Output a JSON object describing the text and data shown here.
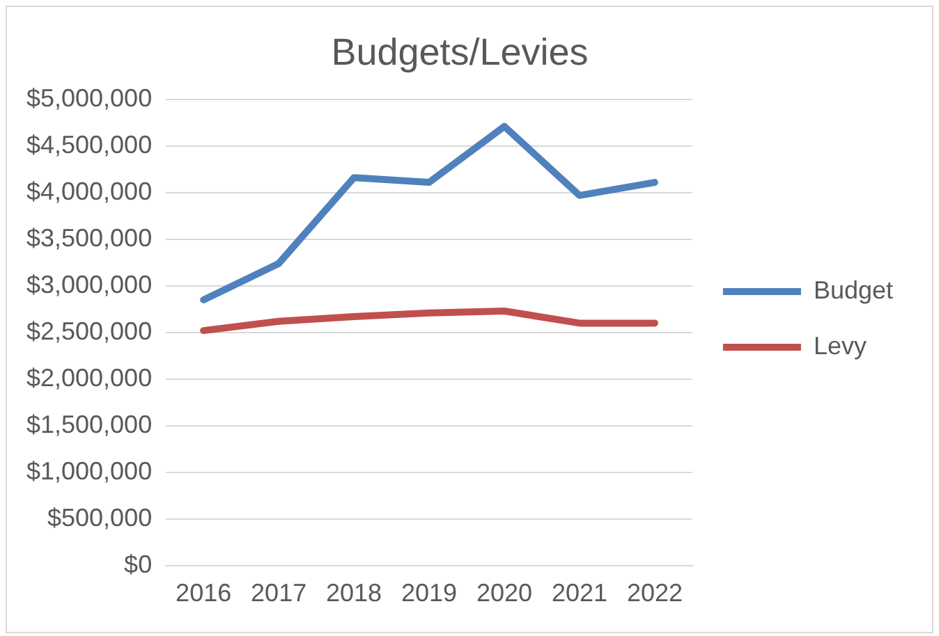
{
  "chart_data": {
    "type": "line",
    "title": "Budgets/Levies",
    "categories": [
      "2016",
      "2017",
      "2018",
      "2019",
      "2020",
      "2021",
      "2022"
    ],
    "series": [
      {
        "name": "Budget",
        "color": "#4f81bd",
        "values": [
          2850000,
          3240000,
          4160000,
          4110000,
          4710000,
          3970000,
          4110000
        ]
      },
      {
        "name": "Levy",
        "color": "#c0504d",
        "values": [
          2520000,
          2620000,
          2670000,
          2710000,
          2730000,
          2600000,
          2600000
        ]
      }
    ],
    "ylim": [
      0,
      5000000
    ],
    "yticks": [
      {
        "value": 0,
        "label": "$0"
      },
      {
        "value": 500000,
        "label": "$500,000"
      },
      {
        "value": 1000000,
        "label": "$1,000,000"
      },
      {
        "value": 1500000,
        "label": "$1,500,000"
      },
      {
        "value": 2000000,
        "label": "$2,000,000"
      },
      {
        "value": 2500000,
        "label": "$2,500,000"
      },
      {
        "value": 3000000,
        "label": "$3,000,000"
      },
      {
        "value": 3500000,
        "label": "$3,500,000"
      },
      {
        "value": 4000000,
        "label": "$4,000,000"
      },
      {
        "value": 4500000,
        "label": "$4,500,000"
      },
      {
        "value": 5000000,
        "label": "$5,000,000"
      }
    ],
    "grid": "y",
    "legend": "right",
    "marker": "none",
    "line_style": "solid"
  }
}
